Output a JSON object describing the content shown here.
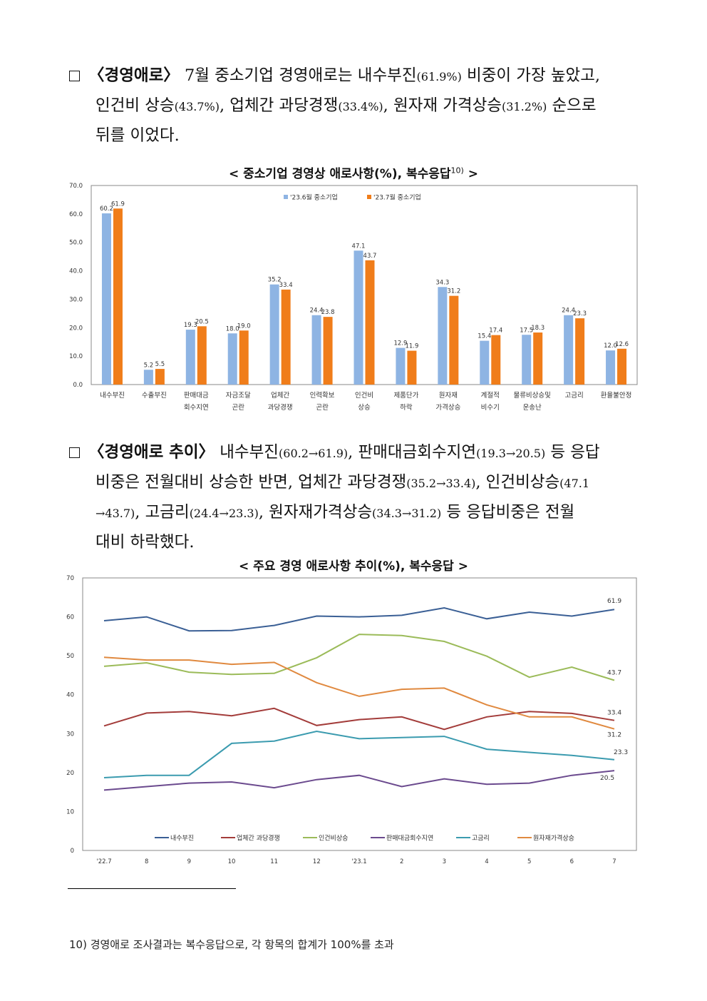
{
  "para1": {
    "bullet": "□",
    "head": "〈경영애로〉",
    "lines": [
      [
        "7월 중소기업 경영애로는 내수부진",
        "(61.9%)",
        " 비중이 가장 높았고,"
      ],
      [
        "인건비 상승",
        "(43.7%)",
        ", 업체간 과당경쟁",
        "(33.4%)",
        ", 원자재 가격상승",
        "(31.2%)",
        " 순으로"
      ],
      [
        "뒤를 이었다."
      ]
    ]
  },
  "chart1": {
    "title": "< 중소기업 경영상 애로사항(%), 복수응답",
    "title_sup": "10)",
    "title_end": " >"
  },
  "para2": {
    "head": "〈경영애로 추이〉",
    "lines": [
      [
        "내수부진",
        "(60.2→61.9)",
        ", 판매대금회수지연",
        "(19.3→20.5)",
        " 등 응답"
      ],
      [
        "비중은 전월대비 상승한 반면, 업체간 과당경쟁",
        "(35.2→33.4)",
        ", 인건비상승",
        "(47.1"
      ],
      [
        "→43.7)",
        ", 고금리",
        "(24.4→23.3)",
        ", 원자재가격상승",
        "(34.3→31.2)",
        " 등 응답비중은 전월"
      ],
      [
        "대비 하락했다."
      ]
    ]
  },
  "chart2": {
    "title": "< 주요 경영 애로사항 추이(%), 복수응답 >"
  },
  "footnote": "10) 경영애로 조사결과는 복수응답으로, 각 항목의 합계가 100%를 초과",
  "colors": {
    "blue": "#8EB4E3",
    "orange": "#F07D1A",
    "line_blue": "#3A5F95",
    "line_red": "#A33C3A",
    "line_green": "#9BBB59",
    "line_purple": "#6B4A8E",
    "line_teal": "#3B9BAF",
    "line_orange": "#E0893F"
  },
  "chart_data": [
    {
      "type": "bar",
      "title": "< 중소기업 경영상 애로사항(%), 복수응답10) >",
      "ylim": [
        0,
        70
      ],
      "yticks": [
        "0.0",
        "10.0",
        "20.0",
        "30.0",
        "40.0",
        "50.0",
        "60.0",
        "70.0"
      ],
      "legend_position": "top-center",
      "categories": [
        [
          "내수부진"
        ],
        [
          "수출부진"
        ],
        [
          "판매대금",
          "회수지연"
        ],
        [
          "자금조달",
          "곤란"
        ],
        [
          "업체간",
          "과당경쟁"
        ],
        [
          "인력확보",
          "곤란"
        ],
        [
          "인건비",
          "상승"
        ],
        [
          "제품단가",
          "하락"
        ],
        [
          "원자재",
          "가격상승"
        ],
        [
          "계절적",
          "비수기"
        ],
        [
          "물류비상승및",
          "운송난"
        ],
        [
          "고금리"
        ],
        [
          "환율불안정"
        ]
      ],
      "series": [
        {
          "name": "'23.6월 중소기업",
          "color": "#8EB4E3",
          "values": [
            60.2,
            5.2,
            19.3,
            18.0,
            35.2,
            24.4,
            47.1,
            12.9,
            34.3,
            15.4,
            17.5,
            24.4,
            12.0
          ]
        },
        {
          "name": "'23.7월 중소기업",
          "color": "#F07D1A",
          "values": [
            61.9,
            5.5,
            20.5,
            19.0,
            33.4,
            23.8,
            43.7,
            11.9,
            31.2,
            17.4,
            18.3,
            23.3,
            12.6
          ]
        }
      ]
    },
    {
      "type": "line",
      "title": "< 주요 경영 애로사항 추이(%), 복수응답 >",
      "ylim": [
        0,
        70
      ],
      "yticks": [
        "0",
        "10",
        "20",
        "30",
        "40",
        "50",
        "60",
        "70"
      ],
      "x": [
        "'22.7",
        "8",
        "9",
        "10",
        "11",
        "12",
        "'23.1",
        "2",
        "3",
        "4",
        "5",
        "6",
        "7"
      ],
      "legend_position": "bottom",
      "series": [
        {
          "name": "내수부진",
          "color": "#3A5F95",
          "values": [
            59.0,
            60.0,
            56.4,
            56.5,
            57.8,
            60.2,
            60.0,
            60.4,
            62.3,
            59.5,
            61.2,
            60.2,
            61.9
          ],
          "end_label": "61.9"
        },
        {
          "name": "업체간 과당경쟁",
          "color": "#A33C3A",
          "values": [
            32.0,
            35.3,
            35.7,
            34.6,
            36.5,
            32.1,
            33.6,
            34.3,
            31.1,
            34.3,
            35.7,
            35.2,
            33.4
          ],
          "end_label": "33.4"
        },
        {
          "name": "인건비상승",
          "color": "#9BBB59",
          "values": [
            47.3,
            48.2,
            45.8,
            45.2,
            45.5,
            49.5,
            55.5,
            55.2,
            53.7,
            49.9,
            44.5,
            47.1,
            43.7
          ],
          "end_label": "43.7"
        },
        {
          "name": "판매대금회수지연",
          "color": "#6B4A8E",
          "values": [
            15.5,
            16.4,
            17.3,
            17.6,
            16.1,
            18.2,
            19.3,
            16.4,
            18.4,
            17.0,
            17.3,
            19.3,
            20.5
          ],
          "end_label": "20.5"
        },
        {
          "name": "고금리",
          "color": "#3B9BAF",
          "values": [
            18.7,
            19.3,
            19.3,
            27.5,
            28.1,
            30.6,
            28.7,
            29.0,
            29.3,
            26.0,
            25.2,
            24.4,
            23.3
          ],
          "end_label": "23.3"
        },
        {
          "name": "원자재가격상승",
          "color": "#E0893F",
          "values": [
            49.6,
            48.9,
            48.9,
            47.8,
            48.3,
            43.1,
            39.6,
            41.4,
            41.7,
            37.4,
            34.3,
            34.3,
            31.2
          ],
          "end_label": "31.2"
        }
      ]
    }
  ]
}
